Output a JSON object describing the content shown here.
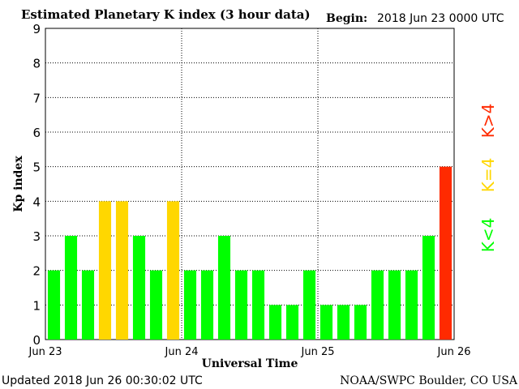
{
  "header": {
    "title": "Estimated Planetary K index (3 hour data)",
    "begin_label": "Begin:",
    "begin_value": "2018 Jun 23 0000 UTC"
  },
  "footer": {
    "updated": "Updated 2018 Jun 26 00:30:02 UTC",
    "source": "NOAA/SWPC Boulder, CO USA"
  },
  "legend": {
    "high": {
      "label": "K>4",
      "color": "#ff2a00"
    },
    "mid": {
      "label": "K=4",
      "color": "#ffd700"
    },
    "low": {
      "label": "K<4",
      "color": "#00ff00"
    }
  },
  "chart_data": {
    "type": "bar",
    "xlabel": "Universal Time",
    "ylabel": "Kp index",
    "ylim": [
      0,
      9
    ],
    "yticks": [
      0,
      1,
      2,
      3,
      4,
      5,
      6,
      7,
      8,
      9
    ],
    "xtick_labels": [
      "Jun 23",
      "Jun 24",
      "Jun 25",
      "Jun 26"
    ],
    "grid": "dotted",
    "values": [
      2,
      3,
      2,
      4,
      4,
      3,
      2,
      4,
      2,
      2,
      3,
      2,
      2,
      1,
      1,
      2,
      1,
      1,
      1,
      2,
      2,
      2,
      3,
      5
    ],
    "colors": {
      "below4": "#00ff00",
      "equal4": "#ffd700",
      "above4": "#ff2a00"
    }
  }
}
